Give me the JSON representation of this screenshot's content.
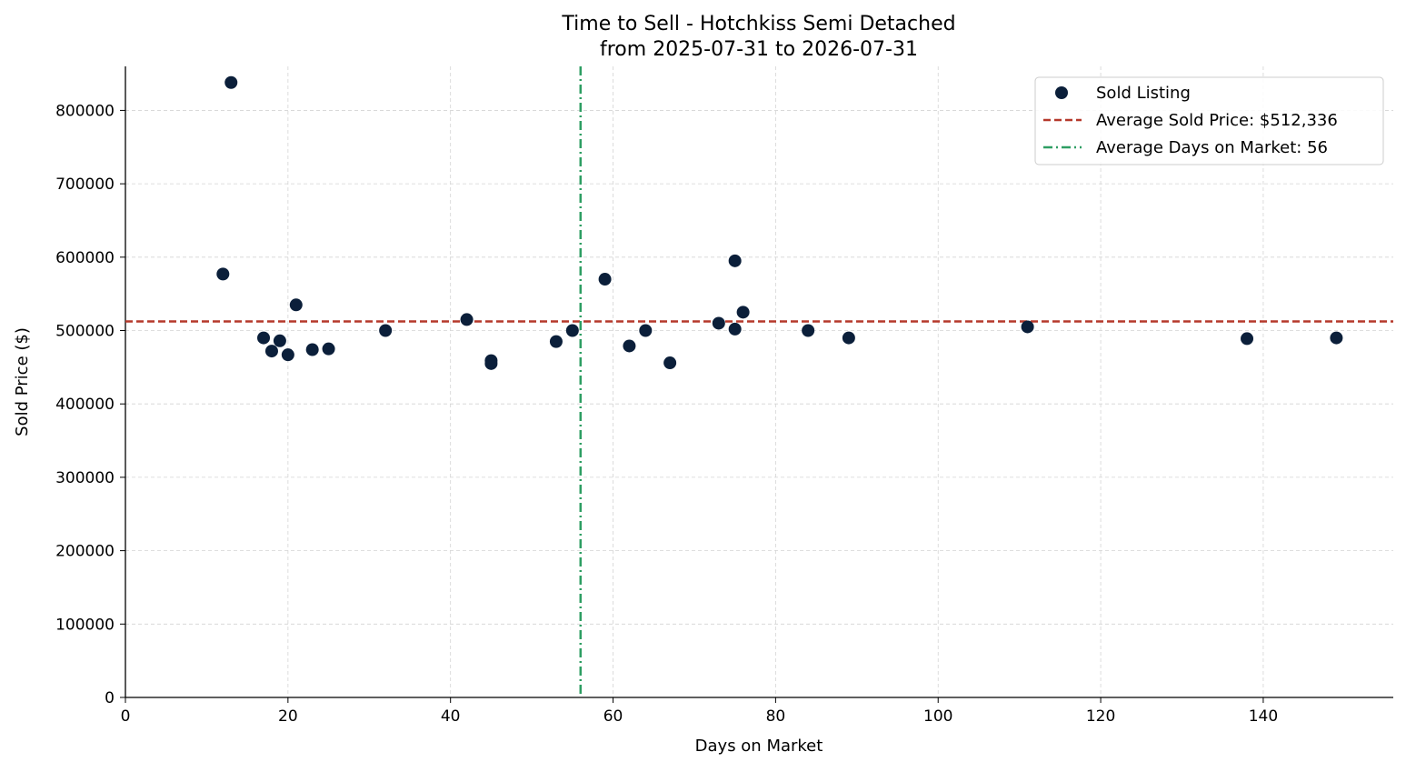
{
  "colors": {
    "point": "#0b1f3a",
    "avg_price_line": "#b5392b",
    "avg_days_line": "#2e9e63",
    "grid": "#d4d4d4",
    "axis": "#000000"
  },
  "chart_data": {
    "type": "scatter",
    "title": "Time to Sell - Hotchkiss Semi Detached",
    "subtitle": "from 2025-07-31 to 2026-07-31",
    "xlabel": "Days on Market",
    "ylabel": "Sold Price ($)",
    "xlim": [
      0,
      156
    ],
    "ylim": [
      0,
      860000
    ],
    "xticks": [
      0,
      20,
      40,
      60,
      80,
      100,
      120,
      140
    ],
    "yticks": [
      0,
      100000,
      200000,
      300000,
      400000,
      500000,
      600000,
      700000,
      800000
    ],
    "grid": true,
    "legend_position": "top-right",
    "series": [
      {
        "name": "Sold Listing",
        "points": [
          {
            "x": 12,
            "y": 577000
          },
          {
            "x": 13,
            "y": 838000
          },
          {
            "x": 17,
            "y": 490000
          },
          {
            "x": 18,
            "y": 472000
          },
          {
            "x": 19,
            "y": 486000
          },
          {
            "x": 20,
            "y": 467000
          },
          {
            "x": 21,
            "y": 535000
          },
          {
            "x": 23,
            "y": 474000
          },
          {
            "x": 25,
            "y": 475000
          },
          {
            "x": 32,
            "y": 500000
          },
          {
            "x": 42,
            "y": 515000
          },
          {
            "x": 45,
            "y": 459000
          },
          {
            "x": 45,
            "y": 455000
          },
          {
            "x": 53,
            "y": 485000
          },
          {
            "x": 55,
            "y": 500000
          },
          {
            "x": 59,
            "y": 570000
          },
          {
            "x": 62,
            "y": 479000
          },
          {
            "x": 64,
            "y": 500000
          },
          {
            "x": 67,
            "y": 456000
          },
          {
            "x": 73,
            "y": 510000
          },
          {
            "x": 75,
            "y": 595000
          },
          {
            "x": 75,
            "y": 502000
          },
          {
            "x": 76,
            "y": 525000
          },
          {
            "x": 84,
            "y": 500000
          },
          {
            "x": 89,
            "y": 490000
          },
          {
            "x": 111,
            "y": 505000
          },
          {
            "x": 138,
            "y": 489000
          },
          {
            "x": 149,
            "y": 490000
          }
        ]
      }
    ],
    "reference_lines": [
      {
        "name": "Average Sold Price: $512,336",
        "orientation": "horizontal",
        "value": 512336,
        "style": "dashed"
      },
      {
        "name": "Average Days on Market: 56",
        "orientation": "vertical",
        "value": 56,
        "style": "dashdot"
      }
    ]
  }
}
